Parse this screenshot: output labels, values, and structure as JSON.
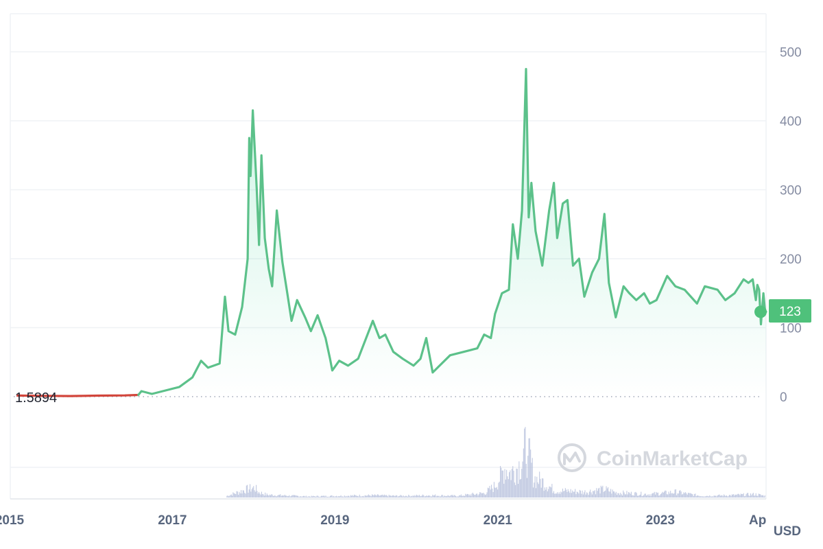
{
  "chart_data": {
    "type": "area",
    "currency_label": "USD",
    "start_value_label": "1.5894",
    "current_price_label": "123",
    "watermark": "CoinMarketCap",
    "colors": {
      "up_line": "#16c784",
      "up_line_soft": "#5cc18a",
      "up_fill": "#16c784",
      "down_line": "#d2453b",
      "badge": "#4fc17b",
      "grid": "#eff2f5",
      "volume": "#b6bfdc"
    },
    "y_axis": {
      "range": [
        0,
        550
      ],
      "ticks": [
        "0",
        "100",
        "200",
        "300",
        "400",
        "500"
      ],
      "tick_values": [
        0,
        100,
        200,
        300,
        400,
        500
      ]
    },
    "x_axis": {
      "range": [
        "2015-01-01",
        "2024-04-20"
      ],
      "ticks": [
        "2015",
        "2017",
        "2019",
        "2021",
        "2023",
        "Ap"
      ],
      "tick_dates": [
        "2015-01-01",
        "2017-01-01",
        "2019-01-01",
        "2021-01-01",
        "2023-01-01",
        "2024-04-01"
      ]
    },
    "grid": true,
    "down_segment_end": "2016-08-01",
    "series": [
      {
        "points": [
          [
            "2015-02-01",
            1.59
          ],
          [
            "2015-06-01",
            1.2
          ],
          [
            "2015-10-01",
            0.9
          ],
          [
            "2016-02-01",
            1.5
          ],
          [
            "2016-06-01",
            1.8
          ],
          [
            "2016-08-01",
            2.5
          ],
          [
            "2016-08-15",
            8
          ],
          [
            "2016-10-01",
            4
          ],
          [
            "2016-12-01",
            9
          ],
          [
            "2017-02-01",
            14
          ],
          [
            "2017-04-01",
            28
          ],
          [
            "2017-05-10",
            52
          ],
          [
            "2017-06-10",
            42
          ],
          [
            "2017-08-01",
            48
          ],
          [
            "2017-08-25",
            145
          ],
          [
            "2017-09-10",
            95
          ],
          [
            "2017-10-10",
            90
          ],
          [
            "2017-11-10",
            130
          ],
          [
            "2017-12-05",
            200
          ],
          [
            "2017-12-12",
            375
          ],
          [
            "2017-12-18",
            320
          ],
          [
            "2017-12-28",
            415
          ],
          [
            "2018-01-15",
            300
          ],
          [
            "2018-01-25",
            220
          ],
          [
            "2018-02-05",
            350
          ],
          [
            "2018-02-20",
            230
          ],
          [
            "2018-03-10",
            185
          ],
          [
            "2018-03-25",
            160
          ],
          [
            "2018-04-15",
            270
          ],
          [
            "2018-05-10",
            195
          ],
          [
            "2018-06-01",
            150
          ],
          [
            "2018-06-20",
            110
          ],
          [
            "2018-07-15",
            140
          ],
          [
            "2018-08-20",
            115
          ],
          [
            "2018-09-15",
            95
          ],
          [
            "2018-10-15",
            118
          ],
          [
            "2018-11-20",
            85
          ],
          [
            "2018-12-10",
            55
          ],
          [
            "2018-12-20",
            38
          ],
          [
            "2019-01-20",
            52
          ],
          [
            "2019-03-01",
            45
          ],
          [
            "2019-04-15",
            55
          ],
          [
            "2019-06-20",
            110
          ],
          [
            "2019-07-20",
            85
          ],
          [
            "2019-08-15",
            90
          ],
          [
            "2019-09-20",
            65
          ],
          [
            "2019-11-01",
            55
          ],
          [
            "2019-12-20",
            45
          ],
          [
            "2020-01-20",
            55
          ],
          [
            "2020-02-15",
            85
          ],
          [
            "2020-03-15",
            35
          ],
          [
            "2020-04-15",
            45
          ],
          [
            "2020-06-01",
            60
          ],
          [
            "2020-08-01",
            65
          ],
          [
            "2020-10-01",
            70
          ],
          [
            "2020-11-01",
            90
          ],
          [
            "2020-12-01",
            85
          ],
          [
            "2020-12-20",
            120
          ],
          [
            "2021-01-20",
            150
          ],
          [
            "2021-02-20",
            155
          ],
          [
            "2021-03-10",
            250
          ],
          [
            "2021-04-01",
            200
          ],
          [
            "2021-04-20",
            270
          ],
          [
            "2021-05-08",
            475
          ],
          [
            "2021-05-20",
            260
          ],
          [
            "2021-06-01",
            310
          ],
          [
            "2021-06-20",
            240
          ],
          [
            "2021-07-20",
            190
          ],
          [
            "2021-08-20",
            270
          ],
          [
            "2021-09-10",
            310
          ],
          [
            "2021-09-25",
            230
          ],
          [
            "2021-10-20",
            280
          ],
          [
            "2021-11-10",
            285
          ],
          [
            "2021-12-05",
            190
          ],
          [
            "2022-01-01",
            200
          ],
          [
            "2022-01-25",
            145
          ],
          [
            "2022-03-01",
            180
          ],
          [
            "2022-04-01",
            200
          ],
          [
            "2022-04-25",
            265
          ],
          [
            "2022-05-15",
            165
          ],
          [
            "2022-06-15",
            115
          ],
          [
            "2022-07-20",
            160
          ],
          [
            "2022-08-15",
            150
          ],
          [
            "2022-09-15",
            140
          ],
          [
            "2022-10-20",
            150
          ],
          [
            "2022-11-15",
            135
          ],
          [
            "2022-12-15",
            140
          ],
          [
            "2023-02-01",
            175
          ],
          [
            "2023-03-10",
            160
          ],
          [
            "2023-04-20",
            155
          ],
          [
            "2023-06-15",
            135
          ],
          [
            "2023-07-20",
            160
          ],
          [
            "2023-09-15",
            155
          ],
          [
            "2023-10-20",
            140
          ],
          [
            "2023-12-01",
            150
          ],
          [
            "2024-01-10",
            170
          ],
          [
            "2024-02-01",
            165
          ],
          [
            "2024-02-20",
            170
          ],
          [
            "2024-03-05",
            140
          ],
          [
            "2024-03-12",
            162
          ],
          [
            "2024-03-20",
            155
          ],
          [
            "2024-03-28",
            105
          ],
          [
            "2024-04-08",
            150
          ],
          [
            "2024-04-15",
            125
          ],
          [
            "2024-04-20",
            123
          ]
        ]
      }
    ],
    "volume": {
      "range": [
        0,
        100
      ],
      "points": [
        [
          "2017-09-01",
          3
        ],
        [
          "2017-12-01",
          15
        ],
        [
          "2018-01-05",
          18
        ],
        [
          "2018-01-20",
          10
        ],
        [
          "2018-03-01",
          5
        ],
        [
          "2018-05-01",
          4
        ],
        [
          "2018-09-01",
          2
        ],
        [
          "2019-01-01",
          3
        ],
        [
          "2019-06-20",
          4
        ],
        [
          "2019-10-01",
          3
        ],
        [
          "2020-03-15",
          4
        ],
        [
          "2020-07-01",
          3
        ],
        [
          "2020-11-01",
          8
        ],
        [
          "2020-12-15",
          20
        ],
        [
          "2021-01-15",
          40
        ],
        [
          "2021-02-01",
          55
        ],
        [
          "2021-02-20",
          45
        ],
        [
          "2021-03-15",
          50
        ],
        [
          "2021-04-10",
          60
        ],
        [
          "2021-04-25",
          75
        ],
        [
          "2021-05-08",
          100
        ],
        [
          "2021-05-15",
          55
        ],
        [
          "2021-05-22",
          80
        ],
        [
          "2021-06-10",
          35
        ],
        [
          "2021-07-15",
          30
        ],
        [
          "2021-08-20",
          20
        ],
        [
          "2021-09-15",
          12
        ],
        [
          "2021-11-10",
          12
        ],
        [
          "2022-01-20",
          10
        ],
        [
          "2022-04-25",
          15
        ],
        [
          "2022-06-15",
          9
        ],
        [
          "2022-11-10",
          6
        ],
        [
          "2023-03-10",
          10
        ],
        [
          "2023-07-01",
          3
        ],
        [
          "2023-11-01",
          4
        ],
        [
          "2024-03-01",
          6
        ],
        [
          "2024-04-15",
          3
        ]
      ]
    }
  }
}
